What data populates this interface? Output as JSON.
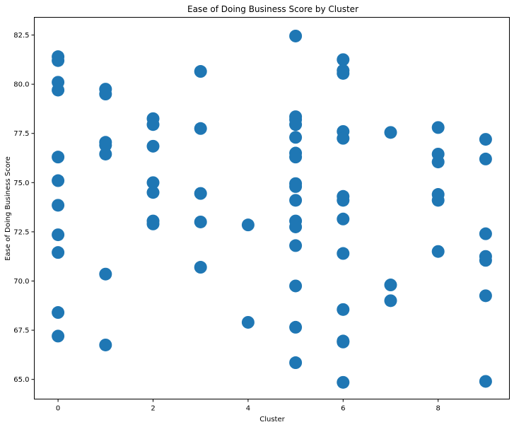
{
  "chart_data": {
    "type": "scatter",
    "title": "Ease of Doing Business Score by Cluster",
    "xlabel": "Cluster",
    "ylabel": "Ease of Doing Business Score",
    "xlim": [
      -0.5,
      9.5
    ],
    "ylim": [
      64.0,
      83.4
    ],
    "xticks": [
      0,
      2,
      4,
      6,
      8
    ],
    "xtick_labels": [
      "0",
      "2",
      "4",
      "6",
      "8"
    ],
    "yticks": [
      65.0,
      67.5,
      70.0,
      72.5,
      75.0,
      77.5,
      80.0,
      82.5
    ],
    "ytick_labels": [
      "65.0",
      "67.5",
      "70.0",
      "72.5",
      "75.0",
      "77.5",
      "80.0",
      "82.5"
    ],
    "grid": false,
    "marker_color": "#1f77b4",
    "points": [
      {
        "x": 0,
        "y": 81.4
      },
      {
        "x": 0,
        "y": 81.2
      },
      {
        "x": 0,
        "y": 80.1
      },
      {
        "x": 0,
        "y": 79.7
      },
      {
        "x": 0,
        "y": 76.3
      },
      {
        "x": 0,
        "y": 75.1
      },
      {
        "x": 0,
        "y": 73.85
      },
      {
        "x": 0,
        "y": 72.35
      },
      {
        "x": 0,
        "y": 71.45
      },
      {
        "x": 0,
        "y": 68.4
      },
      {
        "x": 0,
        "y": 67.2
      },
      {
        "x": 1,
        "y": 79.75
      },
      {
        "x": 1,
        "y": 79.5
      },
      {
        "x": 1,
        "y": 77.05
      },
      {
        "x": 1,
        "y": 76.9
      },
      {
        "x": 1,
        "y": 76.45
      },
      {
        "x": 1,
        "y": 70.35
      },
      {
        "x": 1,
        "y": 66.75
      },
      {
        "x": 2,
        "y": 78.25
      },
      {
        "x": 2,
        "y": 77.95
      },
      {
        "x": 2,
        "y": 76.85
      },
      {
        "x": 2,
        "y": 75.0
      },
      {
        "x": 2,
        "y": 74.5
      },
      {
        "x": 2,
        "y": 73.05
      },
      {
        "x": 2,
        "y": 72.9
      },
      {
        "x": 3,
        "y": 80.65
      },
      {
        "x": 3,
        "y": 77.75
      },
      {
        "x": 3,
        "y": 74.45
      },
      {
        "x": 3,
        "y": 73.0
      },
      {
        "x": 3,
        "y": 70.7
      },
      {
        "x": 4,
        "y": 72.85
      },
      {
        "x": 4,
        "y": 67.9
      },
      {
        "x": 5,
        "y": 82.45
      },
      {
        "x": 5,
        "y": 78.35
      },
      {
        "x": 5,
        "y": 78.2
      },
      {
        "x": 5,
        "y": 77.95
      },
      {
        "x": 5,
        "y": 77.3
      },
      {
        "x": 5,
        "y": 76.5
      },
      {
        "x": 5,
        "y": 76.3
      },
      {
        "x": 5,
        "y": 74.95
      },
      {
        "x": 5,
        "y": 74.8
      },
      {
        "x": 5,
        "y": 74.1
      },
      {
        "x": 5,
        "y": 73.05
      },
      {
        "x": 5,
        "y": 72.75
      },
      {
        "x": 5,
        "y": 71.8
      },
      {
        "x": 5,
        "y": 69.75
      },
      {
        "x": 5,
        "y": 67.65
      },
      {
        "x": 5,
        "y": 65.85
      },
      {
        "x": 6,
        "y": 81.25
      },
      {
        "x": 6,
        "y": 80.7
      },
      {
        "x": 6,
        "y": 80.55
      },
      {
        "x": 6,
        "y": 77.6
      },
      {
        "x": 6,
        "y": 77.25
      },
      {
        "x": 6,
        "y": 74.3
      },
      {
        "x": 6,
        "y": 74.1
      },
      {
        "x": 6,
        "y": 73.15
      },
      {
        "x": 6,
        "y": 71.4
      },
      {
        "x": 6,
        "y": 68.55
      },
      {
        "x": 6,
        "y": 66.95
      },
      {
        "x": 6,
        "y": 66.9
      },
      {
        "x": 6,
        "y": 64.85
      },
      {
        "x": 7,
        "y": 77.55
      },
      {
        "x": 7,
        "y": 69.8
      },
      {
        "x": 7,
        "y": 69.0
      },
      {
        "x": 8,
        "y": 77.8
      },
      {
        "x": 8,
        "y": 76.45
      },
      {
        "x": 8,
        "y": 76.05
      },
      {
        "x": 8,
        "y": 74.4
      },
      {
        "x": 8,
        "y": 74.1
      },
      {
        "x": 8,
        "y": 71.5
      },
      {
        "x": 9,
        "y": 77.2
      },
      {
        "x": 9,
        "y": 76.2
      },
      {
        "x": 9,
        "y": 72.4
      },
      {
        "x": 9,
        "y": 71.25
      },
      {
        "x": 9,
        "y": 71.05
      },
      {
        "x": 9,
        "y": 69.25
      },
      {
        "x": 9,
        "y": 64.9
      }
    ]
  }
}
